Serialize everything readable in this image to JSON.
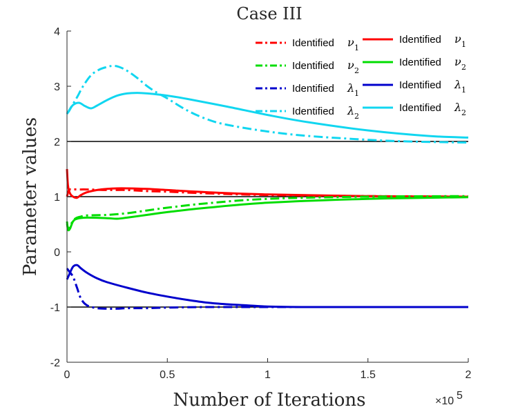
{
  "chart_data": {
    "type": "line",
    "title": "Case III",
    "xlabel": "Number of Iterations",
    "ylabel": "Parameter values",
    "x_multiplier_base": "×10",
    "x_multiplier_exp": "5",
    "xlim": [
      0,
      2
    ],
    "ylim": [
      -2,
      4
    ],
    "x_ticks": [
      0,
      0.5,
      1,
      1.5,
      2
    ],
    "x_tick_labels": [
      "0",
      "0.5",
      "1",
      "1.5",
      "2"
    ],
    "y_ticks": [
      -2,
      -1,
      0,
      1,
      2,
      3,
      4
    ],
    "y_tick_labels": [
      "-2",
      "-1",
      "0",
      "1",
      "2",
      "3",
      "4"
    ],
    "reference_lines": [
      -1,
      1,
      2
    ],
    "reference_color": "#000000",
    "legend": {
      "position": "top-right",
      "columns": 2,
      "prefix": "Identified"
    },
    "series": [
      {
        "name": "Identified ν1",
        "label": "Identified",
        "symbol": "ν",
        "subscript": "1",
        "color": "#ff0000",
        "dash": "dashdot",
        "x": [
          0,
          0.01,
          0.03,
          0.06,
          0.1,
          0.2,
          0.3,
          0.4,
          0.5,
          0.7,
          1.0,
          1.5,
          2.0
        ],
        "y": [
          1.0,
          1.12,
          1.13,
          1.13,
          1.13,
          1.12,
          1.12,
          1.1,
          1.09,
          1.06,
          1.03,
          1.01,
          1.0
        ]
      },
      {
        "name": "Identified ν1",
        "label": "Identified",
        "symbol": "ν",
        "subscript": "1",
        "color": "#ff0000",
        "dash": "solid",
        "x": [
          0,
          0.005,
          0.015,
          0.03,
          0.05,
          0.07,
          0.1,
          0.15,
          0.2,
          0.25,
          0.3,
          0.4,
          0.5,
          0.7,
          1.0,
          1.5,
          2.0
        ],
        "y": [
          1.5,
          1.2,
          1.06,
          1.0,
          0.98,
          1.03,
          1.08,
          1.12,
          1.14,
          1.15,
          1.15,
          1.14,
          1.12,
          1.08,
          1.04,
          1.01,
          1.0
        ]
      },
      {
        "name": "Identified ν2",
        "label": "Identified",
        "symbol": "ν",
        "subscript": "2",
        "color": "#00dd00",
        "dash": "dashdot",
        "x": [
          0,
          0.01,
          0.02,
          0.04,
          0.07,
          0.1,
          0.2,
          0.3,
          0.4,
          0.5,
          0.7,
          1.0,
          1.5,
          2.0
        ],
        "y": [
          0.5,
          0.4,
          0.5,
          0.6,
          0.64,
          0.66,
          0.67,
          0.7,
          0.75,
          0.8,
          0.88,
          0.96,
          1.0,
          1.01
        ]
      },
      {
        "name": "Identified ν2",
        "label": "Identified",
        "symbol": "ν",
        "subscript": "2",
        "color": "#00dd00",
        "dash": "solid",
        "x": [
          0,
          0.005,
          0.015,
          0.03,
          0.05,
          0.1,
          0.2,
          0.25,
          0.3,
          0.4,
          0.5,
          0.7,
          1.0,
          1.5,
          2.0
        ],
        "y": [
          0.55,
          0.4,
          0.42,
          0.55,
          0.6,
          0.62,
          0.61,
          0.6,
          0.62,
          0.67,
          0.72,
          0.8,
          0.89,
          0.96,
          0.99
        ]
      },
      {
        "name": "Identified λ1",
        "label": "Identified",
        "symbol": "λ",
        "subscript": "1",
        "color": "#0000cc",
        "dash": "dashdot",
        "x": [
          0,
          0.01,
          0.03,
          0.05,
          0.07,
          0.1,
          0.15,
          0.2,
          0.25,
          0.3,
          0.4,
          0.5,
          0.7,
          1.0,
          1.5,
          2.0
        ],
        "y": [
          -0.3,
          -0.35,
          -0.45,
          -0.65,
          -0.85,
          -0.97,
          -1.02,
          -1.03,
          -1.03,
          -1.02,
          -1.02,
          -1.01,
          -1.0,
          -1.0,
          -1.0,
          -1.0
        ]
      },
      {
        "name": "Identified λ1",
        "label": "Identified",
        "symbol": "λ",
        "subscript": "1",
        "color": "#0000cc",
        "dash": "solid",
        "x": [
          0,
          0.01,
          0.03,
          0.05,
          0.07,
          0.1,
          0.15,
          0.2,
          0.3,
          0.4,
          0.5,
          0.6,
          0.7,
          0.8,
          0.9,
          1.0,
          1.2,
          1.5,
          2.0
        ],
        "y": [
          -0.5,
          -0.42,
          -0.27,
          -0.24,
          -0.3,
          -0.38,
          -0.48,
          -0.55,
          -0.65,
          -0.74,
          -0.81,
          -0.87,
          -0.92,
          -0.95,
          -0.97,
          -0.99,
          -1.0,
          -1.0,
          -1.0
        ]
      },
      {
        "name": "Identified λ2",
        "label": "Identified",
        "symbol": "λ",
        "subscript": "2",
        "color": "#11d6f0",
        "dash": "dashdot",
        "x": [
          0,
          0.02,
          0.05,
          0.08,
          0.12,
          0.16,
          0.2,
          0.23,
          0.26,
          0.3,
          0.35,
          0.4,
          0.45,
          0.5,
          0.6,
          0.7,
          0.8,
          1.0,
          1.2,
          1.5,
          1.7,
          2.0
        ],
        "y": [
          2.5,
          2.62,
          2.8,
          3.0,
          3.2,
          3.3,
          3.35,
          3.37,
          3.35,
          3.28,
          3.15,
          3.0,
          2.88,
          2.78,
          2.56,
          2.4,
          2.3,
          2.18,
          2.1,
          2.03,
          2.0,
          1.98
        ]
      },
      {
        "name": "Identified λ2",
        "label": "Identified",
        "symbol": "λ",
        "subscript": "2",
        "color": "#11d6f0",
        "dash": "solid",
        "x": [
          0,
          0.01,
          0.03,
          0.06,
          0.09,
          0.12,
          0.15,
          0.2,
          0.25,
          0.3,
          0.35,
          0.4,
          0.5,
          0.6,
          0.8,
          1.0,
          1.2,
          1.5,
          1.8,
          2.0
        ],
        "y": [
          2.5,
          2.55,
          2.66,
          2.7,
          2.64,
          2.6,
          2.65,
          2.75,
          2.83,
          2.87,
          2.88,
          2.87,
          2.83,
          2.77,
          2.63,
          2.48,
          2.35,
          2.2,
          2.1,
          2.07
        ]
      }
    ]
  }
}
